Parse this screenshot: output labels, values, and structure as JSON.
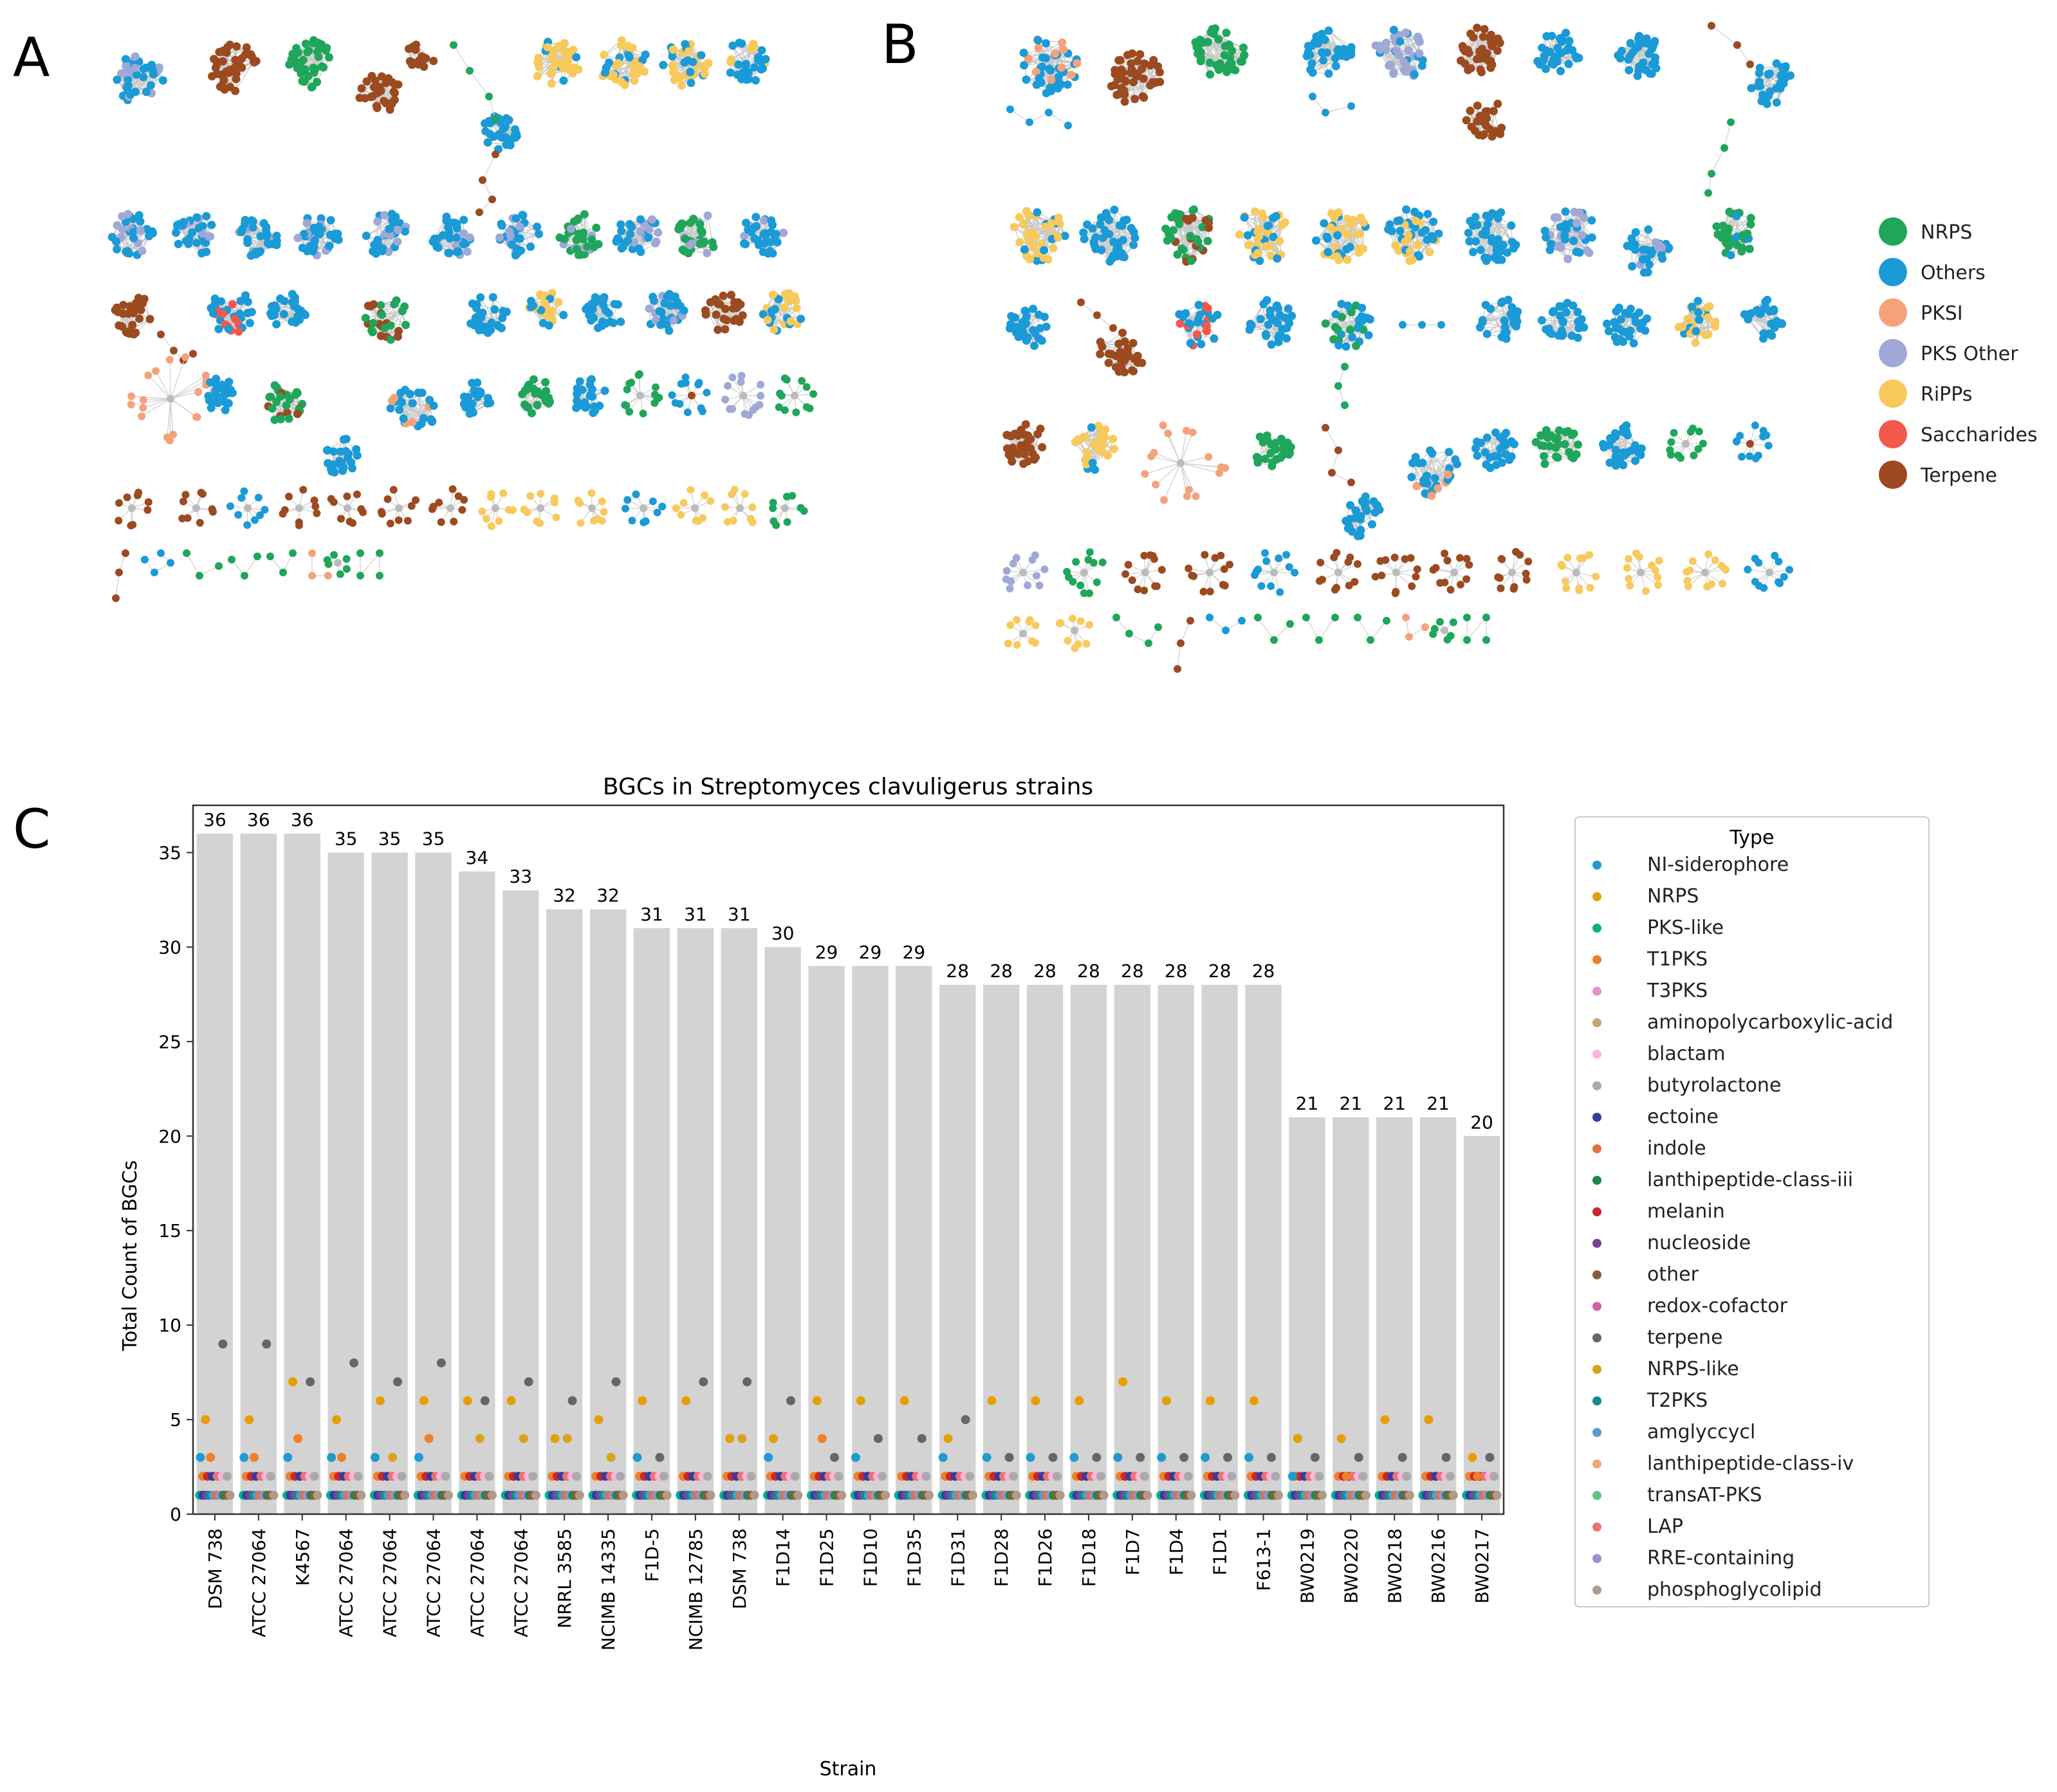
{
  "panel_labels": {
    "a": "A",
    "b": "B",
    "c": "C"
  },
  "network_legend": [
    {
      "label": "NRPS",
      "color": "#1fa65b"
    },
    {
      "label": "Others",
      "color": "#1a9ad6"
    },
    {
      "label": "PKSI",
      "color": "#f4a27a"
    },
    {
      "label": "PKS Other",
      "color": "#9fa8d6"
    },
    {
      "label": "RiPPs",
      "color": "#f8c95c"
    },
    {
      "label": "Saccharides",
      "color": "#f2594b"
    },
    {
      "label": "Terpene",
      "color": "#9c4a1f"
    }
  ],
  "chart_data": {
    "type": "bar",
    "title": "BGCs in Streptomyces clavuligerus strains",
    "xlabel": "Strain",
    "ylabel": "Total Count of BGCs",
    "ylim": [
      0,
      37.5
    ],
    "yticks": [
      0,
      5,
      10,
      15,
      20,
      25,
      30,
      35
    ],
    "categories": [
      "DSM 738",
      "ATCC 27064",
      "K4567",
      "ATCC 27064",
      "ATCC 27064",
      "ATCC 27064",
      "ATCC 27064",
      "ATCC 27064",
      "NRRL 3585",
      "NCIMB 14335",
      "F1D-5",
      "NCIMB 12785",
      "DSM 738",
      "F1D14",
      "F1D25",
      "F1D10",
      "F1D35",
      "F1D31",
      "F1D28",
      "F1D26",
      "F1D18",
      "F1D7",
      "F1D4",
      "F1D1",
      "F613-1",
      "BW0219",
      "BW0220",
      "BW0218",
      "BW0216",
      "BW0217"
    ],
    "values": [
      36,
      36,
      36,
      35,
      35,
      35,
      34,
      33,
      32,
      32,
      31,
      31,
      31,
      30,
      29,
      29,
      29,
      28,
      28,
      28,
      28,
      28,
      28,
      28,
      28,
      21,
      21,
      21,
      21,
      20
    ],
    "bar_color": "#d3d3d3",
    "legend_title": "Type",
    "types": [
      {
        "name": "NI-siderophore",
        "color": "#1f9bd1"
      },
      {
        "name": "NRPS",
        "color": "#e69f00"
      },
      {
        "name": "PKS-like",
        "color": "#00b28a"
      },
      {
        "name": "T1PKS",
        "color": "#f07f26"
      },
      {
        "name": "T3PKS",
        "color": "#e690c8"
      },
      {
        "name": "aminopolycarboxylic-acid",
        "color": "#c9a27a"
      },
      {
        "name": "blactam",
        "color": "#f7b6dd"
      },
      {
        "name": "butyrolactone",
        "color": "#aaaaaa"
      },
      {
        "name": "ectoine",
        "color": "#2e3f9e"
      },
      {
        "name": "indole",
        "color": "#e0733c"
      },
      {
        "name": "lanthipeptide-class-iii",
        "color": "#1b8a4a"
      },
      {
        "name": "melanin",
        "color": "#c8282c"
      },
      {
        "name": "nucleoside",
        "color": "#7b3f9e"
      },
      {
        "name": "other",
        "color": "#8c5a3c"
      },
      {
        "name": "redox-cofactor",
        "color": "#d45fa6"
      },
      {
        "name": "terpene",
        "color": "#666666"
      },
      {
        "name": "NRPS-like",
        "color": "#d9a21b"
      },
      {
        "name": "T2PKS",
        "color": "#128c8c"
      },
      {
        "name": "amglyccycl",
        "color": "#5d99cc"
      },
      {
        "name": "lanthipeptide-class-iv",
        "color": "#f7a57a"
      },
      {
        "name": "transAT-PKS",
        "color": "#5ec48a"
      },
      {
        "name": "LAP",
        "color": "#f07070"
      },
      {
        "name": "RRE-containing",
        "color": "#9a8fd4"
      },
      {
        "name": "phosphoglycolipid",
        "color": "#b09a88"
      }
    ],
    "scatter_main": [
      {
        "NI-siderophore": 3,
        "NRPS": 5,
        "T1PKS": 3,
        "terpene": 9
      },
      {
        "NI-siderophore": 3,
        "NRPS": 5,
        "T1PKS": 3,
        "terpene": 9
      },
      {
        "NI-siderophore": 3,
        "NRPS": 7,
        "T1PKS": 4,
        "terpene": 7
      },
      {
        "NI-siderophore": 3,
        "NRPS": 5,
        "T1PKS": 3,
        "terpene": 8
      },
      {
        "NI-siderophore": 3,
        "NRPS": 6,
        "NRPS-like": 3,
        "terpene": 7
      },
      {
        "NI-siderophore": 3,
        "NRPS": 6,
        "T1PKS": 4,
        "terpene": 8
      },
      {
        "NRPS": 6,
        "NRPS-like": 4,
        "terpene": 6
      },
      {
        "NRPS": 6,
        "NRPS-like": 4,
        "terpene": 7
      },
      {
        "NRPS": 4,
        "NRPS-like": 4,
        "terpene": 6
      },
      {
        "NRPS": 5,
        "NRPS-like": 3,
        "terpene": 7
      },
      {
        "NI-siderophore": 3,
        "NRPS": 6,
        "terpene": 3
      },
      {
        "NRPS": 6,
        "terpene": 7
      },
      {
        "NRPS": 4,
        "NRPS-like": 4,
        "terpene": 7
      },
      {
        "NI-siderophore": 3,
        "NRPS": 4,
        "terpene": 6
      },
      {
        "NRPS": 6,
        "T1PKS": 4,
        "terpene": 3
      },
      {
        "NI-siderophore": 3,
        "NRPS": 6,
        "terpene": 4
      },
      {
        "NRPS": 6,
        "terpene": 4
      },
      {
        "NI-siderophore": 3,
        "NRPS": 4,
        "terpene": 5
      },
      {
        "NI-siderophore": 3,
        "NRPS": 6,
        "terpene": 3
      },
      {
        "NI-siderophore": 3,
        "NRPS": 6,
        "terpene": 3
      },
      {
        "NI-siderophore": 3,
        "NRPS": 6,
        "terpene": 3
      },
      {
        "NI-siderophore": 3,
        "NRPS": 7,
        "terpene": 3
      },
      {
        "NI-siderophore": 3,
        "NRPS": 6,
        "terpene": 3
      },
      {
        "NI-siderophore": 3,
        "NRPS": 6,
        "terpene": 3
      },
      {
        "NI-siderophore": 3,
        "NRPS": 6,
        "terpene": 3
      },
      {
        "NI-siderophore": 2,
        "NRPS": 4,
        "terpene": 3
      },
      {
        "NRPS": 4,
        "T1PKS": 2,
        "terpene": 3
      },
      {
        "NRPS": 5,
        "terpene": 3
      },
      {
        "NRPS": 5,
        "terpene": 3
      },
      {
        "NRPS": 3,
        "T1PKS": 2,
        "terpene": 3
      }
    ],
    "low_count_types_per_strain": {
      "count2_types": [
        "T1PKS",
        "melanin",
        "ectoine",
        "LAP",
        "blactam",
        "butyrolactone"
      ],
      "count1_types": [
        "PKS-like",
        "ectoine",
        "nucleoside",
        "T2PKS",
        "amglyccycl",
        "indole",
        "RRE-containing",
        "lanthipeptide-class-iii",
        "other",
        "phosphoglycolipid"
      ]
    }
  }
}
